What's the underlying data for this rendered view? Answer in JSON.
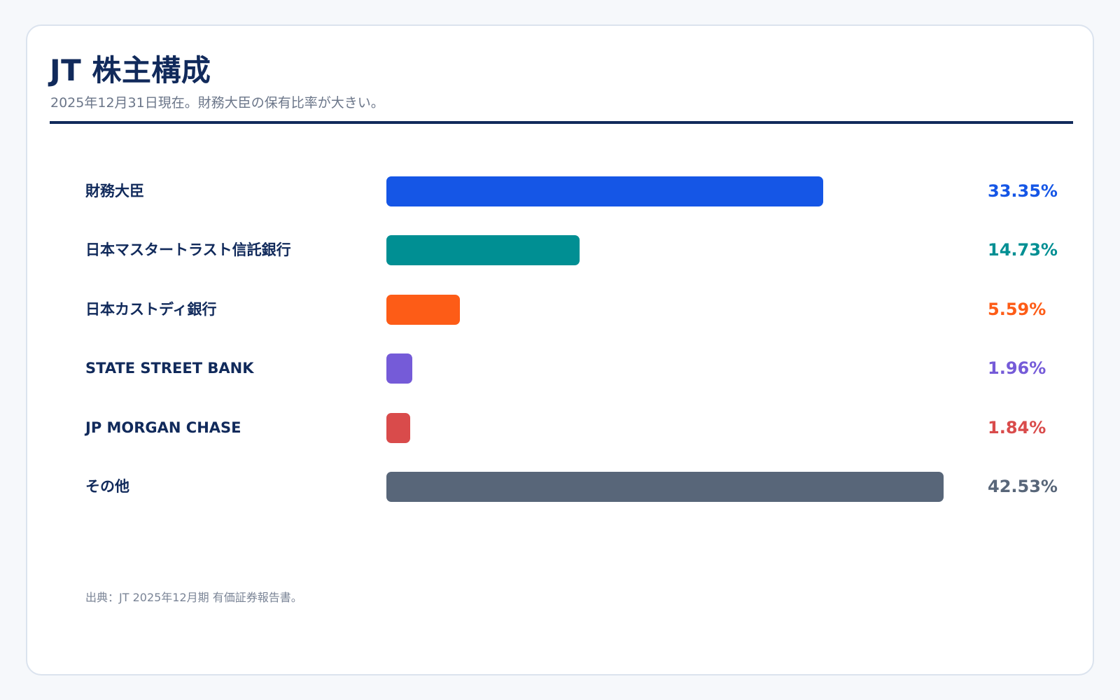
{
  "header": {
    "title": "JT 株主構成",
    "subtitle": "2025年12月31日現在。財務大臣の保有比率が大きい。"
  },
  "chart_data": {
    "type": "bar",
    "orientation": "horizontal",
    "title": "JT 株主構成",
    "subtitle": "2025年12月31日現在。財務大臣の保有比率が大きい。",
    "xlabel": "",
    "ylabel": "",
    "xlim": [
      0,
      42.53
    ],
    "grid": false,
    "unit": "%",
    "categories": [
      "財務大臣",
      "日本マスタートラスト信託銀行",
      "日本カストディ銀行",
      "STATE STREET BANK",
      "JP MORGAN CHASE",
      "その他"
    ],
    "values": [
      33.35,
      14.73,
      5.59,
      1.96,
      1.84,
      42.53
    ],
    "value_labels": [
      "33.35%",
      "14.73%",
      "5.59%",
      "1.96%",
      "1.84%",
      "42.53%"
    ],
    "colors": [
      "#1556e6",
      "#008f93",
      "#fd5c17",
      "#755bd8",
      "#d94b4b",
      "#586679"
    ]
  },
  "footer": {
    "source": "出典：JT 2025年12月期 有価証券報告書。"
  }
}
